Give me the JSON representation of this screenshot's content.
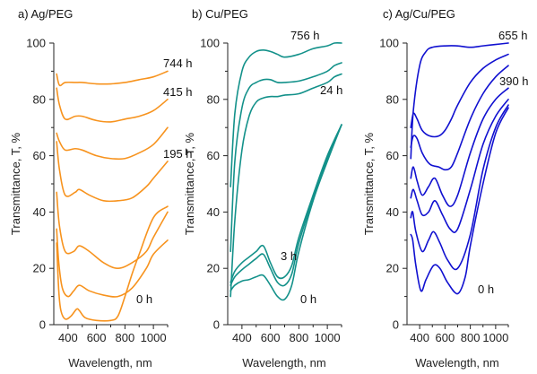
{
  "chart_data": [
    {
      "type": "line",
      "title": "a) Ag/PEG",
      "xlabel": "Wavelength, nm",
      "ylabel": "Transmittance, T, %",
      "xlim": [
        300,
        1100
      ],
      "ylim": [
        0,
        100
      ],
      "xticks": [
        400,
        600,
        800,
        1000
      ],
      "yticks": [
        0,
        20,
        40,
        60,
        80,
        100
      ],
      "color": "#f7931e",
      "series": [
        {
          "x": [
            320,
            340,
            380,
            450,
            500,
            600,
            700,
            800,
            900,
            1000,
            1100
          ],
          "y": [
            89,
            85,
            86,
            86,
            86,
            85.5,
            85.5,
            86,
            87,
            88,
            90
          ]
        },
        {
          "x": [
            320,
            340,
            380,
            450,
            500,
            600,
            700,
            800,
            900,
            1000,
            1100
          ],
          "y": [
            84,
            78,
            73,
            74,
            74,
            72.5,
            72,
            73,
            74,
            76,
            80
          ]
        },
        {
          "x": [
            320,
            340,
            380,
            450,
            500,
            600,
            700,
            800,
            900,
            1000,
            1100
          ],
          "y": [
            68,
            65,
            62,
            62.5,
            62,
            60,
            59,
            59,
            61,
            64,
            70
          ]
        },
        {
          "x": [
            320,
            340,
            380,
            450,
            480,
            550,
            650,
            750,
            850,
            950,
            1000,
            1100
          ],
          "y": [
            65,
            55,
            46,
            47,
            48,
            46,
            44,
            44,
            45,
            49,
            52,
            58
          ]
        },
        {
          "x": [
            320,
            340,
            380,
            440,
            480,
            550,
            650,
            750,
            850,
            950,
            1000,
            1100
          ],
          "y": [
            47,
            35,
            26,
            26,
            28,
            26,
            22,
            20,
            22,
            26,
            31,
            40
          ]
        },
        {
          "x": [
            320,
            335,
            360,
            400,
            440,
            480,
            550,
            650,
            750,
            850,
            950,
            1000,
            1100
          ],
          "y": [
            34,
            22,
            13,
            10,
            12,
            14,
            12,
            10.5,
            10,
            13,
            20,
            25,
            30
          ]
        },
        {
          "x": [
            320,
            335,
            350,
            380,
            420,
            460,
            480,
            520,
            600,
            700,
            750,
            800,
            850,
            900,
            1000,
            1100
          ],
          "y": [
            29,
            12,
            5,
            2,
            3,
            5.5,
            5,
            2.5,
            1.5,
            1.5,
            3,
            10,
            18,
            25,
            38,
            42
          ]
        }
      ],
      "annotations": [
        "744 h",
        "415 h",
        "195 h",
        "0 h"
      ]
    },
    {
      "type": "line",
      "title": "b) Cu/PEG",
      "xlabel": "Wavelength, nm",
      "ylabel": "Transmittance, T, %",
      "xlim": [
        300,
        1100
      ],
      "ylim": [
        0,
        100
      ],
      "xticks": [
        400,
        600,
        800,
        1000
      ],
      "yticks": [
        0,
        20,
        40,
        60,
        80,
        100
      ],
      "color": "#13918a",
      "series": [
        {
          "x": [
            320,
            350,
            400,
            450,
            500,
            550,
            600,
            650,
            700,
            800,
            900,
            1000,
            1050,
            1100
          ],
          "y": [
            49,
            75,
            90,
            95,
            97,
            97.5,
            97,
            96,
            95,
            96,
            98,
            99,
            100,
            100
          ]
        },
        {
          "x": [
            320,
            350,
            400,
            450,
            500,
            550,
            600,
            650,
            700,
            800,
            900,
            1000,
            1050,
            1100
          ],
          "y": [
            26,
            58,
            77,
            84,
            86,
            87,
            87,
            86,
            86,
            86.5,
            88,
            90,
            92,
            93
          ]
        },
        {
          "x": [
            320,
            350,
            400,
            450,
            500,
            550,
            600,
            650,
            700,
            800,
            900,
            1000,
            1050,
            1100
          ],
          "y": [
            10,
            37,
            62,
            74,
            79,
            80.5,
            81,
            81,
            81.5,
            82,
            84,
            86,
            88,
            89
          ]
        },
        {
          "x": [
            320,
            350,
            400,
            450,
            500,
            550,
            600,
            650,
            700,
            750,
            800,
            900,
            1000,
            1100
          ],
          "y": [
            15,
            19,
            22,
            24,
            26,
            28,
            22,
            17,
            17,
            21,
            31,
            46,
            60,
            71
          ]
        },
        {
          "x": [
            320,
            350,
            400,
            450,
            500,
            550,
            600,
            650,
            700,
            750,
            800,
            900,
            1000,
            1100
          ],
          "y": [
            14,
            17,
            19.5,
            21.5,
            23.5,
            25,
            20,
            15,
            14,
            18,
            29,
            45,
            59,
            71
          ]
        },
        {
          "x": [
            320,
            350,
            400,
            450,
            500,
            550,
            600,
            650,
            700,
            750,
            800,
            900,
            1000,
            1100
          ],
          "y": [
            12,
            14,
            15.5,
            16,
            17,
            17.5,
            14,
            10,
            9,
            14,
            26,
            44,
            58,
            71
          ]
        }
      ],
      "annotations": [
        "756 h",
        "24 h",
        "3 h",
        "0 h"
      ]
    },
    {
      "type": "line",
      "title": "c) Ag/Cu/PEG",
      "xlabel": "Wavelength, nm",
      "ylabel": "Transmittance, T, %",
      "xlim": [
        300,
        1100
      ],
      "ylim": [
        0,
        100
      ],
      "xticks": [
        400,
        600,
        800,
        1000
      ],
      "yticks": [
        0,
        20,
        40,
        60,
        80,
        100
      ],
      "color": "#1010d0",
      "series": [
        {
          "x": [
            330,
            350,
            400,
            450,
            500,
            600,
            700,
            800,
            900,
            1000,
            1100
          ],
          "y": [
            59,
            76,
            92,
            97,
            98.5,
            99,
            99,
            98.5,
            99,
            99.5,
            100
          ]
        },
        {
          "x": [
            330,
            350,
            380,
            420,
            480,
            550,
            600,
            650,
            700,
            800,
            900,
            1000,
            1100
          ],
          "y": [
            70,
            75,
            73,
            69,
            67,
            67,
            69,
            73,
            78,
            86,
            91,
            94,
            96
          ]
        },
        {
          "x": [
            330,
            350,
            380,
            420,
            480,
            550,
            600,
            650,
            700,
            800,
            900,
            1000,
            1100
          ],
          "y": [
            63,
            67,
            66,
            61,
            57,
            56,
            55,
            56,
            61,
            73,
            82,
            88,
            92
          ]
        },
        {
          "x": [
            330,
            350,
            380,
            420,
            470,
            520,
            580,
            640,
            700,
            800,
            900,
            1000,
            1100
          ],
          "y": [
            52,
            56,
            51,
            46,
            49,
            52,
            46,
            42,
            46,
            61,
            73,
            80,
            84
          ]
        },
        {
          "x": [
            330,
            350,
            380,
            420,
            470,
            520,
            580,
            640,
            700,
            800,
            900,
            1000,
            1100
          ],
          "y": [
            45,
            48,
            44,
            39,
            40,
            44,
            39,
            34,
            34,
            48,
            64,
            74,
            80
          ]
        },
        {
          "x": [
            330,
            345,
            370,
            420,
            470,
            510,
            560,
            620,
            700,
            800,
            900,
            1000,
            1100
          ],
          "y": [
            38,
            40,
            33,
            26,
            30,
            33,
            29,
            23,
            20,
            32,
            55,
            70,
            78
          ]
        },
        {
          "x": [
            330,
            345,
            370,
            410,
            450,
            510,
            560,
            620,
            700,
            760,
            800,
            900,
            1000,
            1100
          ],
          "y": [
            32,
            30,
            21,
            12,
            16,
            21,
            20,
            15,
            11,
            17,
            28,
            50,
            68,
            77
          ]
        }
      ],
      "annotations": [
        "655 h",
        "390 h",
        "0 h"
      ]
    }
  ]
}
